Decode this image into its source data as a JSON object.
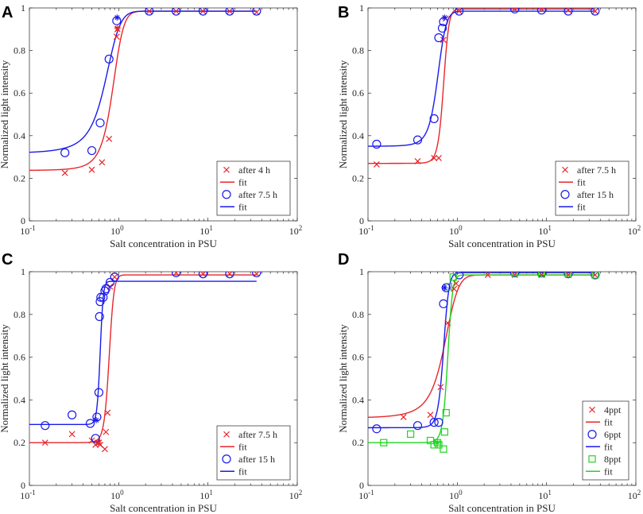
{
  "figure": {
    "colors": {
      "red": "#e8262b",
      "blue": "#1a1aee",
      "green": "#21d421"
    }
  },
  "chart_data": [
    {
      "panel": "A",
      "type": "line",
      "xscale": "log",
      "xlim": [
        0.1,
        100
      ],
      "ylim": [
        0,
        1
      ],
      "xlabel": "Salt concentration in PSU",
      "ylabel": "Normalized light intensity",
      "xtick_labels": [
        {
          "base": "10",
          "exp": "-1",
          "value": 0.1
        },
        {
          "base": "10",
          "exp": "0",
          "value": 1
        },
        {
          "base": "10",
          "exp": "1",
          "value": 10
        },
        {
          "base": "10",
          "exp": "2",
          "value": 100
        }
      ],
      "ytick_labels": [
        {
          "label": "0",
          "value": 0
        },
        {
          "label": "0.2",
          "value": 0.2
        },
        {
          "label": "0.4",
          "value": 0.4
        },
        {
          "label": "0.6",
          "value": 0.6
        },
        {
          "label": "0.8",
          "value": 0.8
        },
        {
          "label": "1",
          "value": 1
        }
      ],
      "legend_position": "bottom-right",
      "series": [
        {
          "name": "after 4 h",
          "kind": "scatter",
          "marker": "x",
          "color": "red",
          "x": [
            0.25,
            0.5,
            0.65,
            0.78,
            0.95,
            0.97,
            2.2,
            4.4,
            8.8,
            17.5,
            35
          ],
          "y": [
            0.225,
            0.24,
            0.275,
            0.385,
            0.865,
            0.9,
            0.985,
            0.985,
            0.985,
            0.985,
            0.98
          ]
        },
        {
          "name": "fit",
          "kind": "fit",
          "color": "red",
          "xmin": 0.1,
          "xmax": 35,
          "low": 0.235,
          "high": 0.985,
          "mid": 0.85,
          "width": 0.13
        },
        {
          "name": "after 7.5 h",
          "kind": "scatter",
          "marker": "o",
          "color": "blue",
          "x": [
            0.25,
            0.5,
            0.62,
            0.78,
            0.95,
            2.2,
            4.4,
            8.8,
            17.5,
            35
          ],
          "y": [
            0.32,
            0.33,
            0.46,
            0.76,
            0.94,
            0.985,
            0.985,
            0.985,
            0.985,
            0.985
          ]
        },
        {
          "name": "fit",
          "kind": "fit",
          "color": "blue",
          "xmin": 0.1,
          "xmax": 35,
          "low": 0.31,
          "high": 0.985,
          "mid": 0.7,
          "width": 0.15
        }
      ],
      "annotations": [
        {
          "kind": "asterisk",
          "color": "blue",
          "x": 0.96,
          "y": 0.955
        },
        {
          "kind": "asterisk",
          "color": "red",
          "x": 0.97,
          "y": 0.905
        }
      ]
    },
    {
      "panel": "B",
      "type": "line",
      "xscale": "log",
      "xlim": [
        0.1,
        100
      ],
      "ylim": [
        0,
        1
      ],
      "xlabel": "Salt concentration in PSU",
      "ylabel": "Normalized light intensity",
      "xtick_labels": [
        {
          "base": "10",
          "exp": "-1",
          "value": 0.1
        },
        {
          "base": "10",
          "exp": "0",
          "value": 1
        },
        {
          "base": "10",
          "exp": "1",
          "value": 10
        },
        {
          "base": "10",
          "exp": "2",
          "value": 100
        }
      ],
      "ytick_labels": [
        {
          "label": "0",
          "value": 0
        },
        {
          "label": "0.2",
          "value": 0.2
        },
        {
          "label": "0.4",
          "value": 0.4
        },
        {
          "label": "0.6",
          "value": 0.6
        },
        {
          "label": "0.8",
          "value": 0.8
        },
        {
          "label": "1",
          "value": 1
        }
      ],
      "legend_position": "bottom-right",
      "series": [
        {
          "name": "after 7.5 h",
          "kind": "scatter",
          "marker": "x",
          "color": "red",
          "x": [
            0.125,
            0.36,
            0.55,
            0.62,
            0.7,
            0.74,
            1.05,
            4.4,
            8.8,
            17.5,
            35
          ],
          "y": [
            0.265,
            0.28,
            0.295,
            0.295,
            0.85,
            0.95,
            0.985,
            0.995,
            0.995,
            0.99,
            0.985
          ]
        },
        {
          "name": "fit",
          "kind": "fit",
          "color": "red",
          "xmin": 0.1,
          "xmax": 35,
          "low": 0.27,
          "high": 0.995,
          "mid": 0.7,
          "width": 0.05
        },
        {
          "name": "after 15 h",
          "kind": "scatter",
          "marker": "o",
          "color": "blue",
          "x": [
            0.125,
            0.36,
            0.55,
            0.62,
            0.68,
            0.7,
            1.05,
            4.4,
            8.8,
            17.5,
            35
          ],
          "y": [
            0.36,
            0.38,
            0.48,
            0.86,
            0.905,
            0.935,
            0.985,
            0.995,
            0.99,
            0.985,
            0.985
          ]
        },
        {
          "name": "fit",
          "kind": "fit",
          "color": "blue",
          "xmin": 0.1,
          "xmax": 35,
          "low": 0.35,
          "high": 0.985,
          "mid": 0.6,
          "width": 0.07
        }
      ],
      "annotations": [
        {
          "kind": "asterisk",
          "color": "blue",
          "x": 0.72,
          "y": 0.955
        }
      ]
    },
    {
      "panel": "C",
      "type": "line",
      "xscale": "log",
      "xlim": [
        0.1,
        100
      ],
      "ylim": [
        0,
        1
      ],
      "xlabel": "Salt concentration in PSU",
      "ylabel": "Normalized light intensity",
      "xtick_labels": [
        {
          "base": "10",
          "exp": "-1",
          "value": 0.1
        },
        {
          "base": "10",
          "exp": "0",
          "value": 1
        },
        {
          "base": "10",
          "exp": "1",
          "value": 10
        },
        {
          "base": "10",
          "exp": "2",
          "value": 100
        }
      ],
      "ytick_labels": [
        {
          "label": "0",
          "value": 0
        },
        {
          "label": "0.2",
          "value": 0.2
        },
        {
          "label": "0.4",
          "value": 0.4
        },
        {
          "label": "0.6",
          "value": 0.6
        },
        {
          "label": "0.8",
          "value": 0.8
        },
        {
          "label": "1",
          "value": 1
        }
      ],
      "legend_position": "bottom-right",
      "series": [
        {
          "name": "after 7.5 h",
          "kind": "scatter",
          "marker": "x",
          "color": "red",
          "x": [
            0.15,
            0.3,
            0.5,
            0.55,
            0.58,
            0.6,
            0.62,
            0.7,
            0.72,
            0.75,
            0.8,
            0.9,
            4.4,
            8.8,
            17.5,
            35
          ],
          "y": [
            0.2,
            0.24,
            0.21,
            0.19,
            0.2,
            0.2,
            0.19,
            0.17,
            0.25,
            0.34,
            0.93,
            0.975,
            0.995,
            0.99,
            0.99,
            0.99
          ]
        },
        {
          "name": "fit",
          "kind": "fit",
          "color": "red",
          "xmin": 0.1,
          "xmax": 35,
          "low": 0.2,
          "high": 0.985,
          "mid": 0.78,
          "width": 0.05
        },
        {
          "name": "after 15 h",
          "kind": "scatter",
          "marker": "o",
          "color": "blue",
          "x": [
            0.15,
            0.3,
            0.48,
            0.55,
            0.57,
            0.6,
            0.61,
            0.62,
            0.63,
            0.67,
            0.7,
            0.72,
            0.8,
            0.9,
            4.4,
            8.8,
            17.5,
            35
          ],
          "y": [
            0.28,
            0.33,
            0.29,
            0.22,
            0.32,
            0.435,
            0.79,
            0.86,
            0.88,
            0.88,
            0.91,
            0.92,
            0.95,
            0.975,
            0.995,
            0.99,
            0.99,
            0.995
          ]
        },
        {
          "name": "fit",
          "kind": "fit",
          "color": "blue",
          "xmin": 0.1,
          "xmax": 35,
          "low": 0.285,
          "high": 0.955,
          "mid": 0.62,
          "width": 0.025
        }
      ],
      "annotations": [
        {
          "kind": "asterisk",
          "color": "blue",
          "x": 0.56,
          "y": 0.305
        },
        {
          "kind": "asterisk",
          "color": "red",
          "x": 0.59,
          "y": 0.2
        }
      ]
    },
    {
      "panel": "D",
      "type": "line",
      "xscale": "log",
      "xlim": [
        0.1,
        100
      ],
      "ylim": [
        0,
        1
      ],
      "xlabel": "Salt concentration in PSU",
      "ylabel": "Normalized light intensity",
      "xtick_labels": [
        {
          "base": "10",
          "exp": "-1",
          "value": 0.1
        },
        {
          "base": "10",
          "exp": "0",
          "value": 1
        },
        {
          "base": "10",
          "exp": "1",
          "value": 10
        },
        {
          "base": "10",
          "exp": "2",
          "value": 100
        }
      ],
      "ytick_labels": [
        {
          "label": "0",
          "value": 0
        },
        {
          "label": "0.2",
          "value": 0.2
        },
        {
          "label": "0.4",
          "value": 0.4
        },
        {
          "label": "0.6",
          "value": 0.6
        },
        {
          "label": "0.8",
          "value": 0.8
        },
        {
          "label": "1",
          "value": 1
        }
      ],
      "legend_position": "bottom-right",
      "series": [
        {
          "name": "4ppt",
          "kind": "scatter",
          "marker": "x",
          "color": "red",
          "x": [
            0.25,
            0.5,
            0.65,
            0.78,
            0.92,
            0.97,
            2.2,
            4.4,
            8.8,
            17.5,
            35
          ],
          "y": [
            0.32,
            0.33,
            0.46,
            0.76,
            0.92,
            0.945,
            0.985,
            0.985,
            0.985,
            0.985,
            0.985
          ]
        },
        {
          "name": "fit",
          "kind": "fit",
          "color": "red",
          "xmin": 0.1,
          "xmax": 35,
          "low": 0.31,
          "high": 0.985,
          "mid": 0.71,
          "width": 0.14
        },
        {
          "name": "6ppt",
          "kind": "scatter",
          "marker": "o",
          "color": "blue",
          "x": [
            0.125,
            0.36,
            0.55,
            0.62,
            0.7,
            0.75,
            1.05,
            4.4,
            8.8,
            17.5,
            35
          ],
          "y": [
            0.265,
            0.28,
            0.295,
            0.295,
            0.85,
            0.925,
            0.985,
            0.995,
            0.995,
            0.99,
            0.985
          ]
        },
        {
          "name": "fit",
          "kind": "fit",
          "color": "blue",
          "xmin": 0.1,
          "xmax": 35,
          "low": 0.27,
          "high": 0.995,
          "mid": 0.7,
          "width": 0.05
        },
        {
          "name": "8ppt",
          "kind": "scatter",
          "marker": "s",
          "color": "green",
          "x": [
            0.15,
            0.3,
            0.5,
            0.55,
            0.6,
            0.62,
            0.7,
            0.72,
            0.75,
            0.8,
            0.9,
            4.4,
            8.8,
            17.5,
            35
          ],
          "y": [
            0.2,
            0.24,
            0.21,
            0.19,
            0.2,
            0.19,
            0.17,
            0.25,
            0.34,
            0.93,
            0.975,
            0.995,
            0.99,
            0.99,
            0.985
          ]
        },
        {
          "name": "fit",
          "kind": "fit",
          "color": "green",
          "xmin": 0.1,
          "xmax": 35,
          "low": 0.2,
          "high": 0.985,
          "mid": 0.78,
          "width": 0.05
        }
      ],
      "annotations": [
        {
          "kind": "asterisk",
          "color": "blue",
          "x": 0.72,
          "y": 0.925
        },
        {
          "kind": "asterisk",
          "color": "green",
          "x": 0.6,
          "y": 0.2
        }
      ]
    }
  ]
}
